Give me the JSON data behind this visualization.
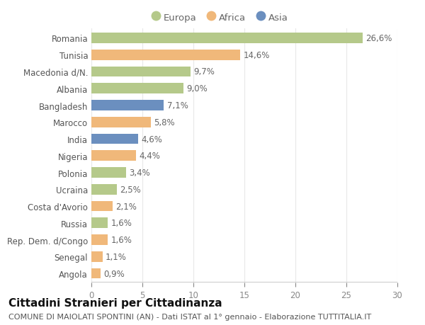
{
  "countries": [
    "Romania",
    "Tunisia",
    "Macedonia d/N.",
    "Albania",
    "Bangladesh",
    "Marocco",
    "India",
    "Nigeria",
    "Polonia",
    "Ucraina",
    "Costa d'Avorio",
    "Russia",
    "Rep. Dem. d/Congo",
    "Senegal",
    "Angola"
  ],
  "values": [
    26.6,
    14.6,
    9.7,
    9.0,
    7.1,
    5.8,
    4.6,
    4.4,
    3.4,
    2.5,
    2.1,
    1.6,
    1.6,
    1.1,
    0.9
  ],
  "labels": [
    "26,6%",
    "14,6%",
    "9,7%",
    "9,0%",
    "7,1%",
    "5,8%",
    "4,6%",
    "4,4%",
    "3,4%",
    "2,5%",
    "2,1%",
    "1,6%",
    "1,6%",
    "1,1%",
    "0,9%"
  ],
  "colors": [
    "#b5c98a",
    "#f0b87a",
    "#b5c98a",
    "#b5c98a",
    "#6b8fbf",
    "#f0b87a",
    "#6b8fbf",
    "#f0b87a",
    "#b5c98a",
    "#b5c98a",
    "#f0b87a",
    "#b5c98a",
    "#f0b87a",
    "#f0b87a",
    "#f0b87a"
  ],
  "legend_labels": [
    "Europa",
    "Africa",
    "Asia"
  ],
  "legend_colors": [
    "#b5c98a",
    "#f0b87a",
    "#6b8fbf"
  ],
  "title": "Cittadini Stranieri per Cittadinanza",
  "subtitle": "COMUNE DI MAIOLATI SPONTINI (AN) - Dati ISTAT al 1° gennaio - Elaborazione TUTTITALIA.IT",
  "xlim": [
    0,
    30
  ],
  "xticks": [
    0,
    5,
    10,
    15,
    20,
    25,
    30
  ],
  "background_color": "#ffffff",
  "grid_color": "#e8e8e8",
  "bar_height": 0.62,
  "label_fontsize": 8.5,
  "tick_fontsize": 8.5,
  "title_fontsize": 11,
  "subtitle_fontsize": 8
}
